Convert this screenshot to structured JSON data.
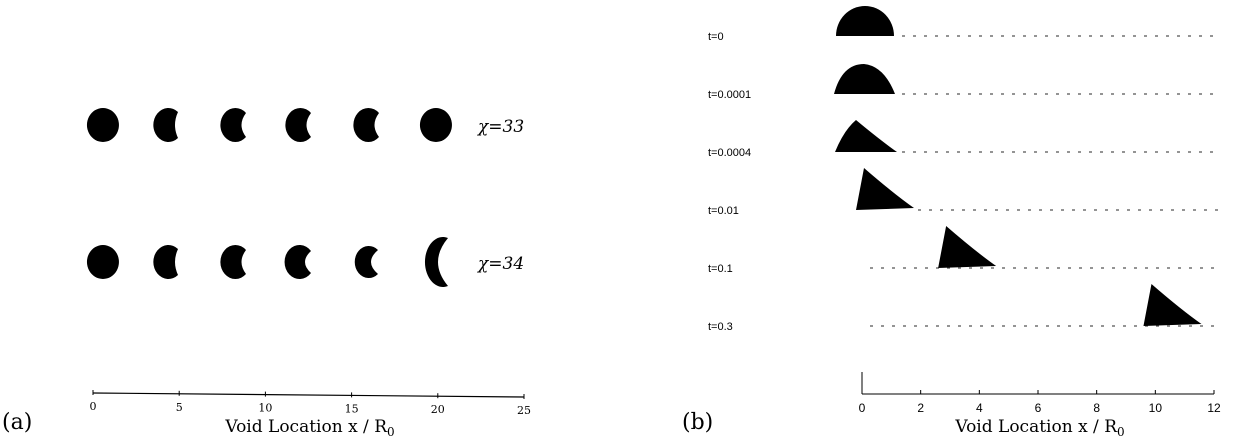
{
  "panel_a": {
    "label": "(a)",
    "xlabel": "Void Location x / R",
    "xlabel_sub": "0",
    "ticks": [
      0,
      5,
      10,
      15,
      20,
      25
    ],
    "xlim": [
      0,
      25
    ],
    "rows": [
      {
        "label": "χ=33",
        "shapes": [
          "circle",
          "notch1",
          "notch2",
          "notch2",
          "notch2",
          "circle"
        ]
      },
      {
        "label": "χ=34",
        "shapes": [
          "circle",
          "notch1",
          "notch2",
          "notch3",
          "notch4",
          "crescent"
        ]
      }
    ]
  },
  "panel_b": {
    "label": "(b)",
    "xlabel": "Void Location x / R",
    "xlabel_sub": "0",
    "ticks": [
      0,
      2,
      4,
      6,
      8,
      10,
      12
    ],
    "xlim": [
      0,
      12
    ],
    "rows": [
      {
        "label": "t=0",
        "x_start": 0.0,
        "shape": "semicircle"
      },
      {
        "label": "t=0.0001",
        "x_start": 0.0,
        "shape": "semi-skewed"
      },
      {
        "label": "t=0.0004",
        "x_start": 0.0,
        "shape": "wedge"
      },
      {
        "label": "t=0.01",
        "x_start": 0.0,
        "shape": "triangle"
      },
      {
        "label": "t=0.1",
        "x_start": 2.8,
        "shape": "triangle"
      },
      {
        "label": "t=0.3",
        "x_start": 9.8,
        "shape": "triangle"
      }
    ]
  }
}
